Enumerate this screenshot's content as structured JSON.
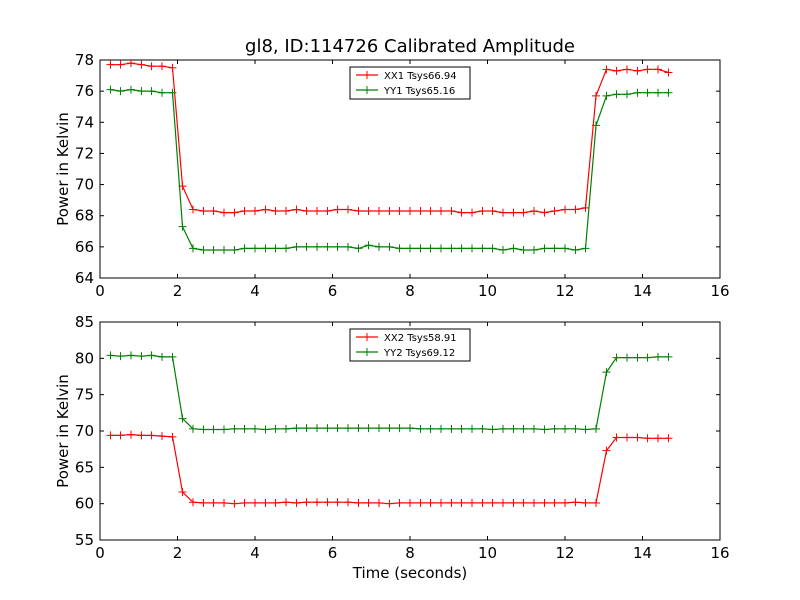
{
  "figure": {
    "title": "gl8, ID:114726 Calibrated Amplitude"
  },
  "chart_data": [
    {
      "type": "line",
      "title": "gl8, ID:114726 Calibrated Amplitude",
      "xlabel": "",
      "ylabel": "Power in Kelvin",
      "xlim": [
        0,
        16
      ],
      "ylim": [
        64,
        78
      ],
      "xticks": [
        "0",
        "2",
        "4",
        "6",
        "8",
        "10",
        "12",
        "14",
        "16"
      ],
      "yticks": [
        "64",
        "66",
        "68",
        "70",
        "72",
        "74",
        "76",
        "78"
      ],
      "legend_position": "top-center",
      "grid": false,
      "x": [
        0.27,
        0.53,
        0.8,
        1.07,
        1.33,
        1.6,
        1.87,
        2.13,
        2.4,
        2.67,
        2.93,
        3.2,
        3.47,
        3.73,
        4.0,
        4.27,
        4.53,
        4.8,
        5.07,
        5.33,
        5.6,
        5.87,
        6.13,
        6.4,
        6.67,
        6.93,
        7.2,
        7.47,
        7.73,
        8.0,
        8.27,
        8.53,
        8.8,
        9.07,
        9.33,
        9.6,
        9.87,
        10.13,
        10.4,
        10.67,
        10.93,
        11.2,
        11.47,
        11.73,
        12.0,
        12.27,
        12.53,
        12.8,
        13.07,
        13.33,
        13.6,
        13.87,
        14.13,
        14.4,
        14.67
      ],
      "series": [
        {
          "name": "XX1 Tsys66.94",
          "color": "#ff0000",
          "values": [
            77.7,
            77.7,
            77.8,
            77.7,
            77.6,
            77.6,
            77.5,
            69.9,
            68.4,
            68.3,
            68.3,
            68.2,
            68.2,
            68.3,
            68.3,
            68.4,
            68.3,
            68.3,
            68.4,
            68.3,
            68.3,
            68.3,
            68.4,
            68.4,
            68.3,
            68.3,
            68.3,
            68.3,
            68.3,
            68.3,
            68.3,
            68.3,
            68.3,
            68.3,
            68.2,
            68.2,
            68.3,
            68.3,
            68.2,
            68.2,
            68.2,
            68.3,
            68.2,
            68.3,
            68.4,
            68.4,
            68.5,
            75.7,
            77.4,
            77.3,
            77.4,
            77.3,
            77.4,
            77.4,
            77.2
          ]
        },
        {
          "name": "YY1 Tsys65.16",
          "color": "#008000",
          "values": [
            76.1,
            76.0,
            76.1,
            76.0,
            76.0,
            75.9,
            75.9,
            67.3,
            65.9,
            65.8,
            65.8,
            65.8,
            65.8,
            65.9,
            65.9,
            65.9,
            65.9,
            65.9,
            66.0,
            66.0,
            66.0,
            66.0,
            66.0,
            66.0,
            65.9,
            66.1,
            66.0,
            66.0,
            65.9,
            65.9,
            65.9,
            65.9,
            65.9,
            65.9,
            65.9,
            65.9,
            65.9,
            65.9,
            65.8,
            65.9,
            65.8,
            65.8,
            65.9,
            65.9,
            65.9,
            65.8,
            65.9,
            73.8,
            75.7,
            75.8,
            75.8,
            75.9,
            75.9,
            75.9,
            75.9
          ]
        }
      ]
    },
    {
      "type": "line",
      "title": "",
      "xlabel": "Time (seconds)",
      "ylabel": "Power in Kelvin",
      "xlim": [
        0,
        16
      ],
      "ylim": [
        55,
        85
      ],
      "xticks": [
        "0",
        "2",
        "4",
        "6",
        "8",
        "10",
        "12",
        "14",
        "16"
      ],
      "yticks": [
        "55",
        "60",
        "65",
        "70",
        "75",
        "80",
        "85"
      ],
      "legend_position": "top-center",
      "grid": false,
      "x": [
        0.27,
        0.53,
        0.8,
        1.07,
        1.33,
        1.6,
        1.87,
        2.13,
        2.4,
        2.67,
        2.93,
        3.2,
        3.47,
        3.73,
        4.0,
        4.27,
        4.53,
        4.8,
        5.07,
        5.33,
        5.6,
        5.87,
        6.13,
        6.4,
        6.67,
        6.93,
        7.2,
        7.47,
        7.73,
        8.0,
        8.27,
        8.53,
        8.8,
        9.07,
        9.33,
        9.6,
        9.87,
        10.13,
        10.4,
        10.67,
        10.93,
        11.2,
        11.47,
        11.73,
        12.0,
        12.27,
        12.53,
        12.8,
        13.07,
        13.33,
        13.6,
        13.87,
        14.13,
        14.4,
        14.67
      ],
      "series": [
        {
          "name": "XX2 Tsys58.91",
          "color": "#ff0000",
          "values": [
            69.4,
            69.4,
            69.5,
            69.4,
            69.4,
            69.3,
            69.2,
            61.6,
            60.2,
            60.1,
            60.1,
            60.1,
            60.0,
            60.1,
            60.1,
            60.1,
            60.1,
            60.2,
            60.1,
            60.2,
            60.2,
            60.2,
            60.2,
            60.2,
            60.1,
            60.1,
            60.1,
            60.0,
            60.1,
            60.1,
            60.1,
            60.1,
            60.1,
            60.1,
            60.1,
            60.1,
            60.1,
            60.1,
            60.1,
            60.1,
            60.1,
            60.1,
            60.1,
            60.1,
            60.1,
            60.2,
            60.1,
            60.1,
            67.3,
            69.1,
            69.1,
            69.1,
            69.0,
            69.0,
            69.0
          ]
        },
        {
          "name": "YY2 Tsys69.12",
          "color": "#008000",
          "values": [
            80.4,
            80.3,
            80.4,
            80.3,
            80.4,
            80.2,
            80.2,
            71.7,
            70.3,
            70.2,
            70.2,
            70.2,
            70.3,
            70.3,
            70.3,
            70.2,
            70.3,
            70.3,
            70.4,
            70.4,
            70.4,
            70.4,
            70.4,
            70.4,
            70.4,
            70.4,
            70.4,
            70.4,
            70.4,
            70.4,
            70.3,
            70.3,
            70.3,
            70.3,
            70.3,
            70.3,
            70.3,
            70.2,
            70.3,
            70.3,
            70.3,
            70.3,
            70.2,
            70.3,
            70.3,
            70.3,
            70.2,
            70.3,
            78.1,
            80.1,
            80.1,
            80.1,
            80.1,
            80.2,
            80.2
          ]
        }
      ]
    }
  ]
}
